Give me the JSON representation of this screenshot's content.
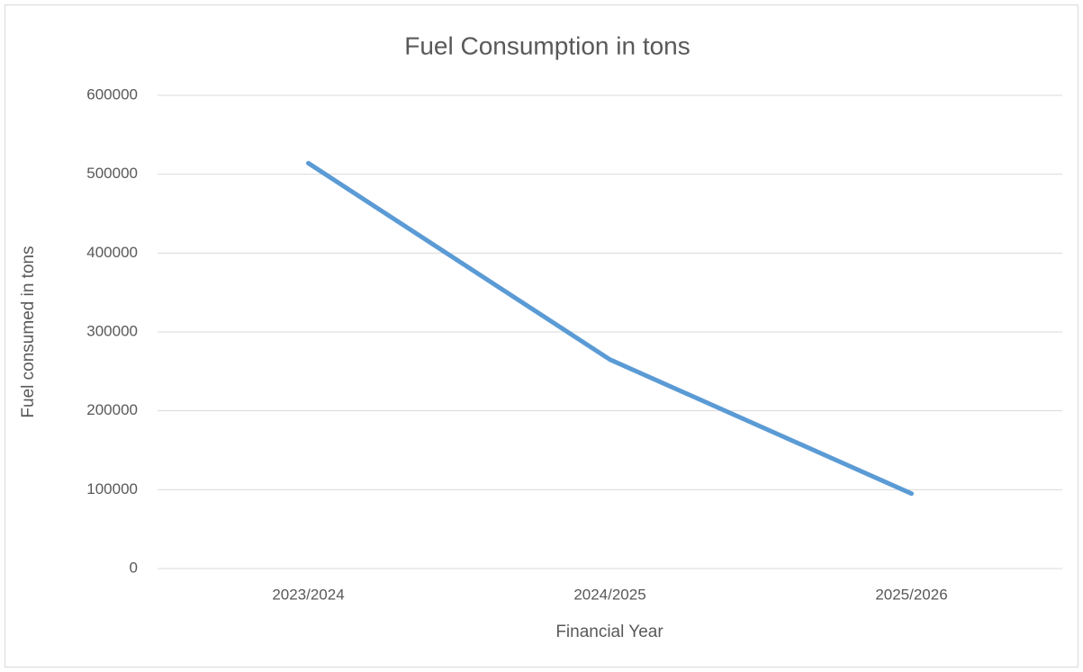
{
  "chart_data": {
    "type": "line",
    "title": "Fuel Consumption in tons",
    "x_label": "Financial Year",
    "y_label": "Fuel consumed in tons",
    "categories": [
      "2023/2024",
      "2024/2025",
      "2025/2026"
    ],
    "values": [
      514000,
      265000,
      95000
    ],
    "color": "#5b9bd5",
    "ylim": [
      0,
      600000
    ],
    "yticks": [
      0,
      100000,
      200000,
      300000,
      400000,
      500000,
      600000
    ],
    "grid": true
  }
}
